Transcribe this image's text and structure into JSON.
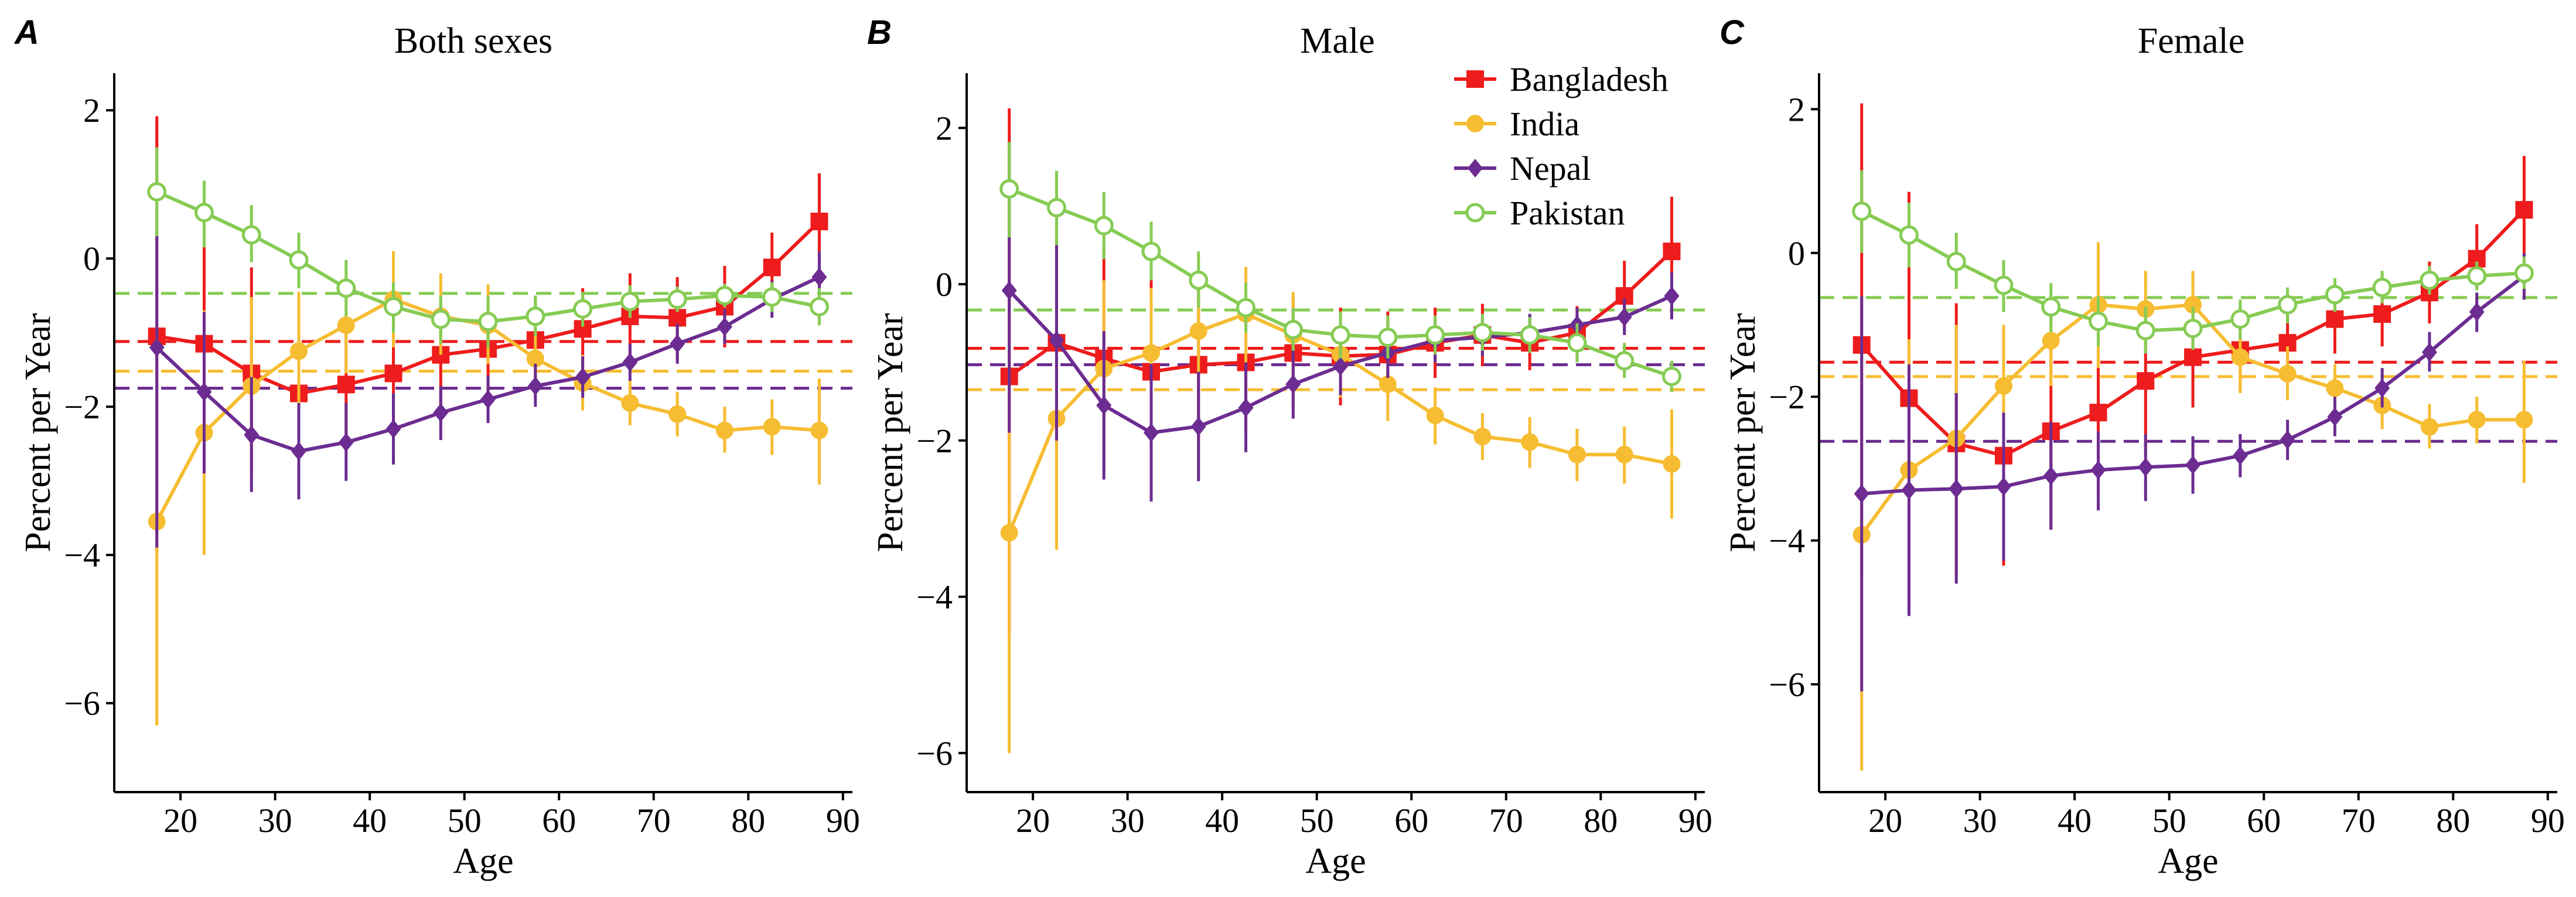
{
  "colors": {
    "Bangladesh": "#ee1c1c",
    "India": "#f6bd32",
    "Nepal": "#6c2c91",
    "Pakistan": "#86cc54",
    "axis": "#000000"
  },
  "legend": {
    "title": "",
    "placement": "top-right of panel B",
    "entries": [
      {
        "name": "Bangladesh",
        "marker": "square"
      },
      {
        "name": "India",
        "marker": "circle"
      },
      {
        "name": "Nepal",
        "marker": "diamond"
      },
      {
        "name": "Pakistan",
        "marker": "open-circle"
      }
    ]
  },
  "chart_data": [
    {
      "type": "line",
      "panel_label": "A",
      "title": "Both sexes",
      "xlabel": "Age",
      "ylabel": "Percent per Year",
      "xlim": [
        13,
        91
      ],
      "ylim": [
        -7.2,
        2.5
      ],
      "xticks": [
        20,
        30,
        40,
        50,
        60,
        70,
        80,
        90
      ],
      "yticks": [
        2,
        0,
        -2,
        -4,
        -6
      ],
      "ytick_labels": [
        "2",
        "0",
        "−2",
        "−4",
        "−6"
      ],
      "x": [
        17.5,
        22.5,
        27.5,
        32.5,
        37.5,
        42.5,
        47.5,
        52.5,
        57.5,
        62.5,
        67.5,
        72.5,
        77.5,
        82.5,
        87.5
      ],
      "series": [
        {
          "name": "Bangladesh",
          "reference": -1.12,
          "values": [
            -1.05,
            -1.15,
            -1.55,
            -1.82,
            -1.7,
            -1.55,
            -1.3,
            -1.22,
            -1.1,
            -0.95,
            -0.78,
            -0.8,
            -0.65,
            -0.12,
            0.5
          ],
          "lower": [
            -3.95,
            -2.95,
            -2.9,
            -2.9,
            -2.6,
            -2.4,
            -2.0,
            -1.95,
            -1.7,
            -1.5,
            -1.35,
            -1.35,
            -1.2,
            -0.6,
            -0.12
          ],
          "upper": [
            1.92,
            0.62,
            -0.12,
            -0.75,
            -0.8,
            -0.7,
            -0.6,
            -0.52,
            -0.52,
            -0.4,
            -0.2,
            -0.25,
            -0.1,
            0.35,
            1.15
          ]
        },
        {
          "name": "India",
          "reference": -1.52,
          "values": [
            -3.55,
            -2.35,
            -1.72,
            -1.25,
            -0.9,
            -0.55,
            -0.78,
            -0.9,
            -1.35,
            -1.68,
            -1.95,
            -2.1,
            -2.32,
            -2.27,
            -2.32
          ],
          "lower": [
            -6.3,
            -4.0,
            -2.9,
            -2.05,
            -1.55,
            -1.2,
            -1.3,
            -1.42,
            -1.85,
            -2.05,
            -2.25,
            -2.4,
            -2.62,
            -2.65,
            -3.05
          ],
          "upper": [
            -0.8,
            -0.7,
            -0.52,
            -0.45,
            -0.15,
            0.1,
            -0.2,
            -0.35,
            -0.85,
            -1.3,
            -1.65,
            -1.8,
            -2.0,
            -1.9,
            -1.62
          ]
        },
        {
          "name": "Nepal",
          "reference": -1.75,
          "values": [
            -1.2,
            -1.8,
            -2.38,
            -2.6,
            -2.48,
            -2.3,
            -2.08,
            -1.9,
            -1.72,
            -1.6,
            -1.4,
            -1.15,
            -0.92,
            -0.55,
            -0.25
          ],
          "lower": [
            -3.9,
            -2.9,
            -3.15,
            -3.25,
            -3.0,
            -2.78,
            -2.45,
            -2.22,
            -2.0,
            -1.88,
            -1.65,
            -1.42,
            -1.15,
            -0.8,
            -0.6
          ],
          "upper": [
            0.32,
            -0.72,
            -1.6,
            -1.95,
            -1.95,
            -1.82,
            -1.72,
            -1.58,
            -1.42,
            -1.32,
            -1.15,
            -0.88,
            -0.68,
            -0.3,
            0.1
          ]
        },
        {
          "name": "Pakistan",
          "reference": -0.47,
          "values": [
            0.9,
            0.62,
            0.32,
            -0.02,
            -0.4,
            -0.65,
            -0.82,
            -0.85,
            -0.78,
            -0.68,
            -0.58,
            -0.55,
            -0.5,
            -0.52,
            -0.65
          ],
          "lower": [
            0.3,
            0.15,
            -0.05,
            -0.4,
            -0.78,
            -1.0,
            -1.15,
            -1.2,
            -1.05,
            -0.92,
            -0.8,
            -0.72,
            -0.66,
            -0.72,
            -0.9
          ],
          "upper": [
            1.5,
            1.05,
            0.72,
            0.35,
            -0.02,
            -0.32,
            -0.5,
            -0.5,
            -0.5,
            -0.45,
            -0.36,
            -0.38,
            -0.34,
            -0.32,
            -0.4
          ]
        }
      ]
    },
    {
      "type": "line",
      "panel_label": "B",
      "title": "Male",
      "xlabel": "Age",
      "ylabel": "Percent per Year",
      "xlim": [
        13,
        91
      ],
      "ylim": [
        -6.5,
        2.7
      ],
      "xticks": [
        20,
        30,
        40,
        50,
        60,
        70,
        80,
        90
      ],
      "yticks": [
        2,
        0,
        -2,
        -4,
        -6
      ],
      "ytick_labels": [
        "2",
        "0",
        "−2",
        "−4",
        "−6"
      ],
      "x": [
        17.5,
        22.5,
        27.5,
        32.5,
        37.5,
        42.5,
        47.5,
        52.5,
        57.5,
        62.5,
        67.5,
        72.5,
        77.5,
        82.5,
        87.5
      ],
      "series": [
        {
          "name": "Bangladesh",
          "reference": -0.82,
          "values": [
            -1.18,
            -0.75,
            -0.95,
            -1.12,
            -1.03,
            -1.0,
            -0.88,
            -0.92,
            -0.9,
            -0.75,
            -0.65,
            -0.75,
            -0.62,
            -0.15,
            0.42
          ],
          "lower": [
            -4.5,
            -2.35,
            -2.4,
            -2.35,
            -2.0,
            -1.9,
            -1.6,
            -1.55,
            -1.45,
            -1.2,
            -1.05,
            -1.1,
            -0.98,
            -0.6,
            -0.35
          ],
          "upper": [
            2.25,
            0.85,
            0.5,
            0.15,
            -0.05,
            -0.1,
            -0.15,
            -0.3,
            -0.35,
            -0.3,
            -0.25,
            -0.4,
            -0.28,
            0.3,
            1.12
          ]
        },
        {
          "name": "India",
          "reference": -1.35,
          "values": [
            -3.18,
            -1.72,
            -1.08,
            -0.88,
            -0.6,
            -0.38,
            -0.65,
            -0.9,
            -1.28,
            -1.68,
            -1.95,
            -2.02,
            -2.18,
            -2.18,
            -2.3
          ],
          "lower": [
            -6.0,
            -3.4,
            -2.2,
            -1.7,
            -1.25,
            -1.0,
            -1.22,
            -1.45,
            -1.75,
            -2.05,
            -2.25,
            -2.35,
            -2.52,
            -2.55,
            -3.0
          ],
          "upper": [
            -0.4,
            -0.05,
            0.05,
            -0.05,
            0.05,
            0.22,
            -0.1,
            -0.35,
            -0.8,
            -1.32,
            -1.65,
            -1.7,
            -1.85,
            -1.82,
            -1.6
          ]
        },
        {
          "name": "Nepal",
          "reference": -1.03,
          "values": [
            -0.08,
            -0.72,
            -1.55,
            -1.9,
            -1.82,
            -1.58,
            -1.28,
            -1.05,
            -0.88,
            -0.72,
            -0.68,
            -0.62,
            -0.52,
            -0.42,
            -0.15
          ],
          "lower": [
            -1.9,
            -2.0,
            -2.5,
            -2.78,
            -2.52,
            -2.15,
            -1.72,
            -1.42,
            -1.2,
            -1.0,
            -0.92,
            -0.85,
            -0.75,
            -0.65,
            -0.45
          ],
          "upper": [
            1.75,
            0.5,
            -0.6,
            -1.02,
            -1.12,
            -1.0,
            -0.85,
            -0.68,
            -0.55,
            -0.45,
            -0.42,
            -0.38,
            -0.3,
            -0.18,
            0.15
          ]
        },
        {
          "name": "Pakistan",
          "reference": -0.33,
          "values": [
            1.22,
            0.98,
            0.75,
            0.42,
            0.05,
            -0.3,
            -0.58,
            -0.65,
            -0.68,
            -0.65,
            -0.62,
            -0.65,
            -0.75,
            -0.98,
            -1.18
          ],
          "lower": [
            0.6,
            0.5,
            0.32,
            0.05,
            -0.3,
            -0.62,
            -0.85,
            -0.95,
            -0.95,
            -0.9,
            -0.85,
            -0.88,
            -1.0,
            -1.2,
            -1.38
          ],
          "upper": [
            1.82,
            1.45,
            1.18,
            0.8,
            0.42,
            0.02,
            -0.3,
            -0.35,
            -0.4,
            -0.4,
            -0.38,
            -0.42,
            -0.5,
            -0.75,
            -0.98
          ]
        }
      ]
    },
    {
      "type": "line",
      "panel_label": "C",
      "title": "Female",
      "xlabel": "Age",
      "ylabel": "Percent per Year",
      "xlim": [
        13,
        91
      ],
      "ylim": [
        -7.5,
        2.5
      ],
      "xticks": [
        20,
        30,
        40,
        50,
        60,
        70,
        80,
        90
      ],
      "yticks": [
        2,
        0,
        -2,
        -4,
        -6
      ],
      "ytick_labels": [
        "2",
        "0",
        "−2",
        "−4",
        "−6"
      ],
      "x": [
        17.5,
        22.5,
        27.5,
        32.5,
        37.5,
        42.5,
        47.5,
        52.5,
        57.5,
        62.5,
        67.5,
        72.5,
        77.5,
        82.5,
        87.5
      ],
      "series": [
        {
          "name": "Bangladesh",
          "reference": -1.52,
          "values": [
            -1.28,
            -2.02,
            -2.65,
            -2.82,
            -2.48,
            -2.22,
            -1.78,
            -1.45,
            -1.35,
            -1.25,
            -0.92,
            -0.85,
            -0.55,
            -0.08,
            0.6
          ],
          "lower": [
            -4.5,
            -5.0,
            -4.5,
            -4.35,
            -3.85,
            -3.4,
            -2.75,
            -2.15,
            -1.9,
            -1.75,
            -1.4,
            -1.3,
            -0.98,
            -0.5,
            -0.15
          ],
          "upper": [
            2.08,
            0.85,
            -0.7,
            -1.3,
            -1.12,
            -1.02,
            -0.82,
            -0.75,
            -0.8,
            -0.75,
            -0.45,
            -0.38,
            -0.12,
            0.4,
            1.35
          ]
        },
        {
          "name": "India",
          "reference": -1.72,
          "values": [
            -3.92,
            -3.02,
            -2.58,
            -1.85,
            -1.22,
            -0.72,
            -0.78,
            -0.72,
            -1.45,
            -1.68,
            -1.88,
            -2.12,
            -2.42,
            -2.32,
            -2.32
          ],
          "lower": [
            -7.2,
            -4.8,
            -4.1,
            -2.7,
            -1.85,
            -1.6,
            -1.3,
            -1.2,
            -1.95,
            -2.05,
            -2.2,
            -2.45,
            -2.72,
            -2.65,
            -3.2
          ],
          "upper": [
            -0.6,
            -1.2,
            -1.0,
            -1.0,
            -0.6,
            0.15,
            -0.25,
            -0.25,
            -0.95,
            -1.3,
            -1.55,
            -1.8,
            -2.1,
            -2.0,
            -1.5
          ]
        },
        {
          "name": "Nepal",
          "reference": -2.62,
          "values": [
            -3.35,
            -3.3,
            -3.28,
            -3.25,
            -3.1,
            -3.02,
            -2.98,
            -2.95,
            -2.82,
            -2.6,
            -2.28,
            -1.88,
            -1.38,
            -0.82,
            -0.32
          ],
          "lower": [
            -6.1,
            -5.05,
            -4.6,
            -4.28,
            -3.85,
            -3.58,
            -3.45,
            -3.35,
            -3.12,
            -2.88,
            -2.55,
            -2.15,
            -1.65,
            -1.1,
            -0.65
          ],
          "upper": [
            -0.6,
            -1.55,
            -1.95,
            -2.22,
            -2.35,
            -2.48,
            -2.52,
            -2.55,
            -2.52,
            -2.32,
            -2.0,
            -1.6,
            -1.1,
            -0.55,
            0.0
          ]
        },
        {
          "name": "Pakistan",
          "reference": -0.62,
          "values": [
            0.58,
            0.25,
            -0.12,
            -0.45,
            -0.75,
            -0.95,
            -1.08,
            -1.05,
            -0.92,
            -0.72,
            -0.58,
            -0.48,
            -0.38,
            -0.32,
            -0.28
          ],
          "lower": [
            0.0,
            -0.2,
            -0.5,
            -0.82,
            -1.1,
            -1.3,
            -1.4,
            -1.35,
            -1.2,
            -0.98,
            -0.82,
            -0.7,
            -0.58,
            -0.52,
            -0.5
          ],
          "upper": [
            1.15,
            0.7,
            0.28,
            -0.1,
            -0.42,
            -0.6,
            -0.75,
            -0.75,
            -0.65,
            -0.48,
            -0.35,
            -0.25,
            -0.18,
            -0.12,
            -0.05
          ]
        }
      ]
    }
  ]
}
